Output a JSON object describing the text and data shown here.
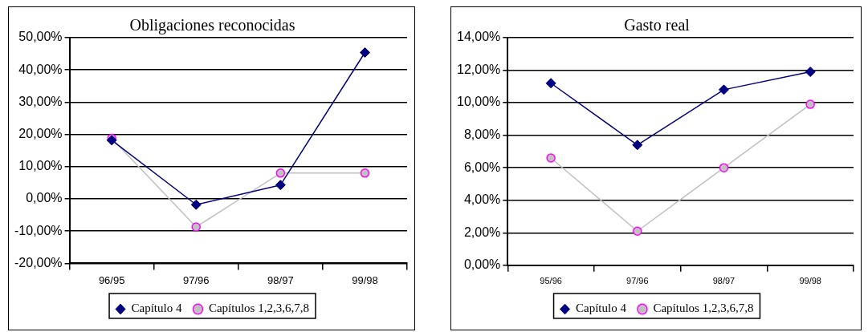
{
  "chart_data": [
    {
      "type": "line",
      "title": "Obligaciones reconocidas",
      "categories": [
        "96/95",
        "97/96",
        "98/97",
        "99/98"
      ],
      "series": [
        {
          "name": "Capítulo 4",
          "color": "#000080",
          "marker": "diamond",
          "values": [
            18.2,
            -1.8,
            4.3,
            45.4
          ]
        },
        {
          "name": "Capítulos 1,2,3,6,7,8",
          "color": "#c0c0c0",
          "marker": "circle",
          "values": [
            18.8,
            -8.7,
            8.0,
            8.0
          ]
        }
      ],
      "ylim": [
        -20,
        50
      ],
      "yticks": [
        {
          "value": -20,
          "label": "-20,00%"
        },
        {
          "value": -10,
          "label": "-10,00%"
        },
        {
          "value": 0,
          "label": "0,00%"
        },
        {
          "value": 10,
          "label": "10,00%"
        },
        {
          "value": 20,
          "label": "20,00%"
        },
        {
          "value": 30,
          "label": "30,00%"
        },
        {
          "value": 40,
          "label": "40,00%"
        },
        {
          "value": 50,
          "label": "50,00%"
        }
      ],
      "grid": "y",
      "legend": "bottom"
    },
    {
      "type": "line",
      "title": "Gasto real",
      "categories": [
        "95/96",
        "97/96",
        "98/97",
        "99/98"
      ],
      "series": [
        {
          "name": "Capítulo 4",
          "color": "#000080",
          "marker": "diamond",
          "values": [
            11.2,
            7.4,
            10.8,
            11.9
          ]
        },
        {
          "name": "Capítulos 1,2,3,6,7,8",
          "color": "#c0c0c0",
          "marker": "circle",
          "values": [
            6.6,
            2.1,
            6.0,
            9.9
          ]
        }
      ],
      "ylim": [
        0,
        14
      ],
      "yticks": [
        {
          "value": 0,
          "label": "0,00%"
        },
        {
          "value": 2,
          "label": "2,00%"
        },
        {
          "value": 4,
          "label": "4,00%"
        },
        {
          "value": 6,
          "label": "6,00%"
        },
        {
          "value": 8,
          "label": "8,00%"
        },
        {
          "value": 10,
          "label": "10,00%"
        },
        {
          "value": 12,
          "label": "12,00%"
        },
        {
          "value": 14,
          "label": "14,00%"
        }
      ],
      "grid": "y",
      "legend": "bottom"
    }
  ]
}
